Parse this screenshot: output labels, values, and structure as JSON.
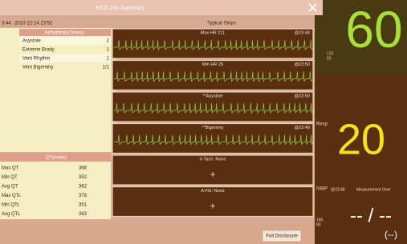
{
  "header": {
    "time": "3:44",
    "date": "2010-12-14 23:52",
    "title": "ECG 24h Summary"
  },
  "arrhythmia": {
    "title": "Arrhythmia(Times)",
    "rows": [
      [
        "Asystole",
        "2"
      ],
      [
        "Extreme Brady",
        "1"
      ],
      [
        "Vent Rhythm",
        "1"
      ],
      [
        "Vent Bigeminy",
        "1/1"
      ]
    ]
  },
  "qt": {
    "title": "QT(msec)",
    "rows": [
      [
        "Max QT",
        "368"
      ],
      [
        "Min QT",
        "352"
      ],
      [
        "Avg QT",
        "362"
      ],
      [
        "Max QTc",
        "378"
      ],
      [
        "Min QTc",
        "351"
      ],
      [
        "Avg QTc",
        "363"
      ]
    ]
  },
  "strips": {
    "title": "Typical Strips",
    "items": [
      {
        "label": "Max HR 211",
        "time": "@23:44"
      },
      {
        "label": "Min HR 29",
        "time": "@23:50"
      },
      {
        "label": "**Asystole",
        "time": "@23:50"
      },
      {
        "label": "**Bigeminy",
        "time": "@23:49"
      },
      {
        "label": "V-Tach: None"
      },
      {
        "label": "A-Fib: None"
      }
    ]
  },
  "vitals": {
    "hr": "60",
    "hr_limits": [
      "120",
      "50"
    ],
    "resp_label": "Resp",
    "resp": "20",
    "nibp_label": "NIBP",
    "nibp_time": "@23:48",
    "nibp_status": "Measurement Over",
    "nibp": "-- / --",
    "nibp_mean": "(--)",
    "nibp_limits": [
      "160",
      "90"
    ]
  },
  "footer": {
    "button": "Full Disclosure"
  }
}
